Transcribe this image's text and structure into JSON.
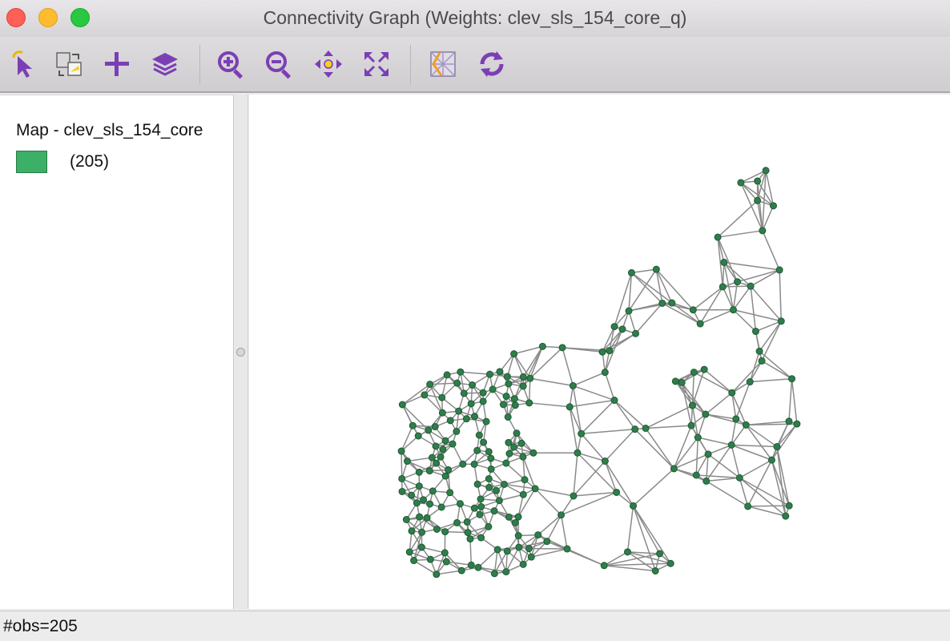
{
  "window": {
    "title": "Connectivity Graph (Weights: clev_sls_154_core_q)"
  },
  "toolbar": {
    "tools": [
      {
        "name": "select-tool",
        "icon": "select-arrow-icon"
      },
      {
        "name": "selection-tool",
        "icon": "selection-shape-icon"
      },
      {
        "name": "add-tool",
        "icon": "plus-icon"
      },
      {
        "name": "layers-tool",
        "icon": "layers-icon"
      },
      {
        "name": "zoom-in-tool",
        "icon": "zoom-in-icon"
      },
      {
        "name": "zoom-out-tool",
        "icon": "zoom-out-icon"
      },
      {
        "name": "pan-tool",
        "icon": "pan-move-icon"
      },
      {
        "name": "full-extent-tool",
        "icon": "full-extent-icon"
      },
      {
        "name": "basemap-tool",
        "icon": "basemap-icon"
      },
      {
        "name": "refresh-tool",
        "icon": "refresh-icon"
      }
    ],
    "icon_color": "#7b3fb5"
  },
  "legend": {
    "title": "Map - clev_sls_154_core",
    "items": [
      {
        "label": "(205)",
        "color": "#3cb067"
      }
    ]
  },
  "map": {
    "node_color": "#2e7d4a",
    "edge_color": "#8a8a8a"
  },
  "status": {
    "text": "#obs=205"
  }
}
